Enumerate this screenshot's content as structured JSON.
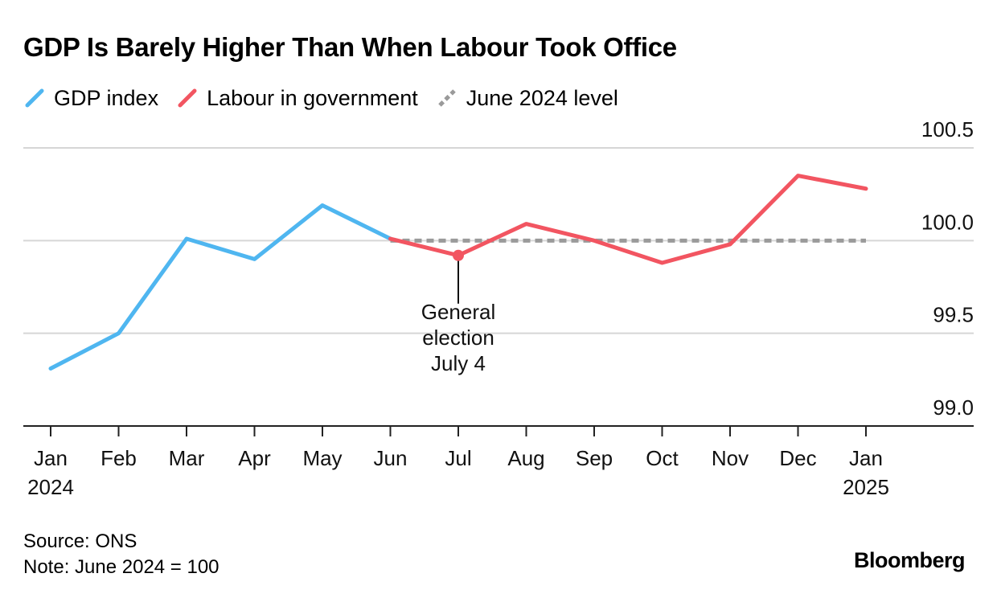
{
  "chart_data": {
    "type": "line",
    "title": "GDP Is Barely Higher Than When Labour Took Office",
    "xlabel": "",
    "ylabel": "",
    "ylim": [
      99.0,
      100.5
    ],
    "yticks": [
      100.5,
      100.0,
      99.5,
      99.0
    ],
    "ytick_labels": [
      "100.5",
      "100.0",
      "99.5",
      "99.0"
    ],
    "categories": [
      "Jan",
      "Feb",
      "Mar",
      "Apr",
      "May",
      "Jun",
      "Jul",
      "Aug",
      "Sep",
      "Oct",
      "Nov",
      "Dec",
      "Jan"
    ],
    "category_sublabels": [
      "2024",
      "",
      "",
      "",
      "",
      "",
      "",
      "",
      "",
      "",
      "",
      "",
      "2025"
    ],
    "series": [
      {
        "name": "GDP index",
        "color": "#4fb6f0",
        "values": [
          99.31,
          99.5,
          100.01,
          99.9,
          100.19,
          100.01,
          null,
          null,
          null,
          null,
          null,
          null,
          null
        ]
      },
      {
        "name": "Labour in government",
        "color": "#f25561",
        "values": [
          null,
          null,
          null,
          null,
          null,
          100.01,
          99.92,
          100.09,
          100.0,
          99.88,
          99.98,
          100.35,
          100.28
        ]
      },
      {
        "name": "June 2024 level",
        "color": "#9a9a9a",
        "dashed": true,
        "values": [
          null,
          null,
          null,
          null,
          null,
          100.0,
          100.0,
          100.0,
          100.0,
          100.0,
          100.0,
          100.0,
          100.0
        ]
      }
    ],
    "annotation": {
      "category_index": 6,
      "value": 99.92,
      "lines": [
        "General",
        "election",
        "July 4"
      ]
    }
  },
  "footer": {
    "source": "Source: ONS",
    "note": "Note: June 2024 = 100"
  },
  "brand": "Bloomberg"
}
